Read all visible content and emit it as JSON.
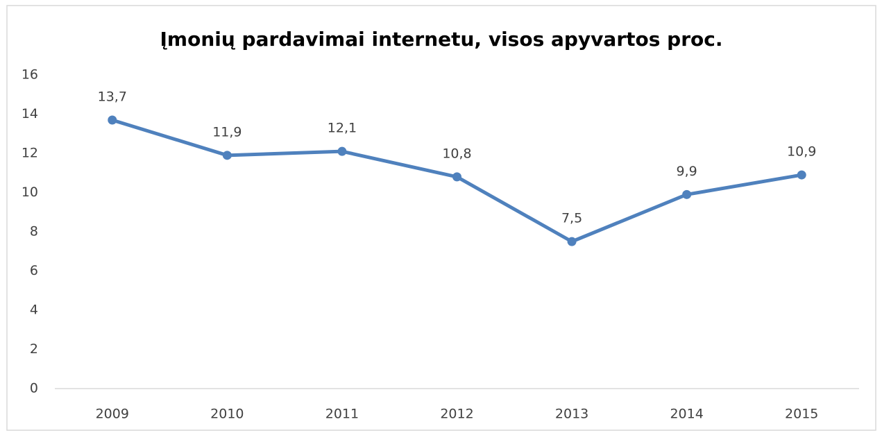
{
  "chart_data": {
    "type": "line",
    "title": "Įmonių pardavimai internetu, visos apyvartos proc.",
    "categories": [
      "2009",
      "2010",
      "2011",
      "2012",
      "2013",
      "2014",
      "2015"
    ],
    "series": [
      {
        "name": "Įmonių pardavimai internetu",
        "color": "#4f81bd",
        "values": [
          13.7,
          11.9,
          12.1,
          10.8,
          7.5,
          9.9,
          10.9
        ],
        "value_labels": [
          "13,7",
          "11,9",
          "12,1",
          "10,8",
          "7,5",
          "9,9",
          "10,9"
        ]
      }
    ],
    "ylim": [
      0,
      16
    ],
    "yticks": [
      0,
      2,
      4,
      6,
      8,
      10,
      12,
      14,
      16
    ],
    "grid": false
  }
}
